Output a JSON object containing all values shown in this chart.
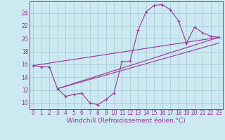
{
  "background_color": "#cce8f0",
  "grid_color": "#aaccdd",
  "line_color": "#993399",
  "marker_color": "#993399",
  "xlabel": "Windchill (Refroidissement éolien,°C)",
  "xlabel_fontsize": 6.5,
  "tick_fontsize": 5.5,
  "xlim": [
    -0.5,
    23.5
  ],
  "ylim": [
    9.0,
    25.8
  ],
  "yticks": [
    10,
    12,
    14,
    16,
    18,
    20,
    22,
    24
  ],
  "xticks": [
    0,
    1,
    2,
    3,
    4,
    5,
    6,
    7,
    8,
    9,
    10,
    11,
    12,
    13,
    14,
    15,
    16,
    17,
    18,
    19,
    20,
    21,
    22,
    23
  ],
  "line1_x": [
    0,
    1,
    2,
    3,
    4,
    5,
    6,
    7,
    8,
    9,
    10,
    11,
    12,
    13,
    14,
    15,
    16,
    17,
    18,
    19,
    20,
    21,
    22,
    23
  ],
  "line1_y": [
    15.8,
    15.6,
    15.6,
    12.2,
    11.0,
    11.3,
    11.5,
    10.0,
    9.7,
    10.5,
    11.5,
    16.4,
    16.5,
    21.3,
    24.2,
    25.2,
    25.3,
    24.5,
    22.8,
    19.3,
    21.8,
    20.9,
    20.4,
    20.2
  ],
  "line2_x": [
    0,
    23
  ],
  "line2_y": [
    15.8,
    20.2
  ],
  "line3_x": [
    3,
    23
  ],
  "line3_y": [
    12.2,
    20.2
  ],
  "line4_x": [
    3,
    23
  ],
  "line4_y": [
    12.2,
    19.3
  ]
}
